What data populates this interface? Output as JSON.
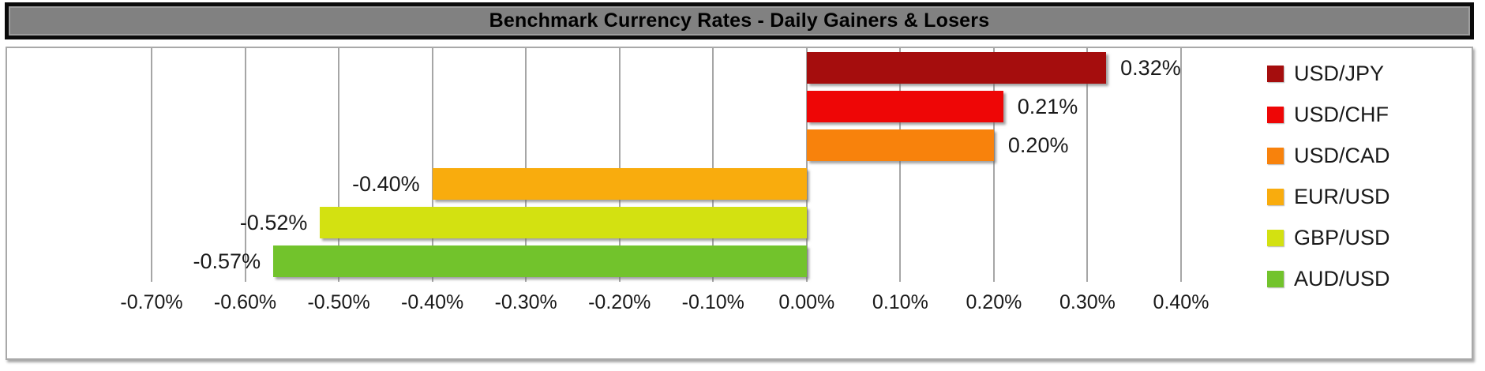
{
  "title_bar": {
    "text": "Benchmark Currency Rates - Daily Gainers & Losers"
  },
  "chart_data": {
    "type": "bar",
    "orientation": "horizontal",
    "title": "Benchmark Currency Rates - Daily Gainers & Losers",
    "categories": [
      "USD/JPY",
      "USD/CHF",
      "USD/CAD",
      "EUR/USD",
      "GBP/USD",
      "AUD/USD"
    ],
    "values": [
      0.32,
      0.21,
      0.2,
      -0.4,
      -0.52,
      -0.57
    ],
    "data_labels": [
      "0.32%",
      "0.21%",
      "0.20%",
      "-0.40%",
      "-0.52%",
      "-0.57%"
    ],
    "bar_colors": [
      "#a50d0d",
      "#ee0606",
      "#f8820c",
      "#f9ac0d",
      "#d3e111",
      "#72c32c"
    ],
    "x_ticks": [
      "-0.70%",
      "-0.60%",
      "-0.50%",
      "-0.40%",
      "-0.30%",
      "-0.20%",
      "-0.10%",
      "0.00%",
      "0.10%",
      "0.20%",
      "0.30%",
      "0.40%"
    ],
    "xlim": [
      -0.7,
      0.4
    ],
    "grid": "vertical",
    "legend_position": "right"
  },
  "colors": {
    "title_background": "#818181",
    "title_border": "#0b0b0b",
    "gridline": "#a6a6a6",
    "chart_border": "#a9a9a9",
    "text": "#1a1a1a"
  }
}
